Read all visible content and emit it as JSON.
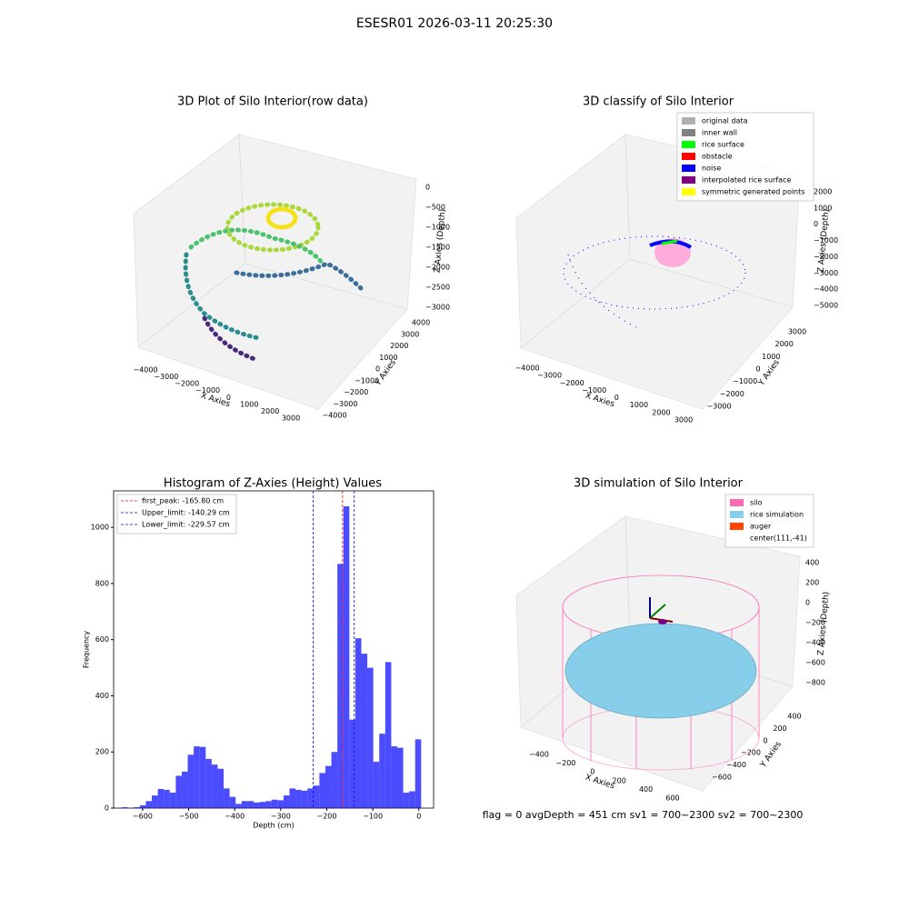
{
  "title": "ESESR01 2026-03-11 20:25:30",
  "footer": "flag = 0     avgDepth = 451 cm  sv1 = 700~2300  sv2 = 700~2300",
  "chart_data": [
    {
      "type": "scatter3d",
      "title": "3D Plot of Silo Interior(row data)",
      "xlabel": "X Axies",
      "ylabel": "Y Axies",
      "zlabel": "Z Axies (Depth)",
      "xticks": [
        {
          "value": -4000,
          "label": "−4000"
        },
        {
          "value": -3000,
          "label": "−3000"
        },
        {
          "value": -2000,
          "label": "−2000"
        },
        {
          "value": -1000,
          "label": "−1000"
        },
        0,
        1000,
        2000,
        3000
      ],
      "yticks": [
        {
          "value": -4000,
          "label": "−4000"
        },
        {
          "value": -3000,
          "label": "−3000"
        },
        {
          "value": -2000,
          "label": "−2000"
        },
        {
          "value": -1000,
          "label": "−1000"
        },
        0,
        1000,
        2000,
        3000,
        4000
      ],
      "zticks": [
        0,
        {
          "value": -500,
          "label": "−500"
        },
        {
          "value": -1000,
          "label": "−1000"
        },
        {
          "value": -1500,
          "label": "−1500"
        },
        {
          "value": -2000,
          "label": "−2000"
        },
        {
          "value": -2500,
          "label": "−2500"
        },
        {
          "value": -3000,
          "label": "−3000"
        }
      ]
    },
    {
      "type": "scatter3d",
      "title": "3D classify of Silo Interior",
      "xlabel": "X Axies",
      "ylabel": "Y Axies",
      "zlabel": "Z Axies (Depth)",
      "xticks": [
        {
          "value": -4000,
          "label": "−4000"
        },
        {
          "value": -3000,
          "label": "−3000"
        },
        {
          "value": -2000,
          "label": "−2000"
        },
        {
          "value": -1000,
          "label": "−1000"
        },
        0,
        1000,
        2000,
        3000
      ],
      "yticks": [
        {
          "value": -3000,
          "label": "−3000"
        },
        {
          "value": -2000,
          "label": "−2000"
        },
        {
          "value": -1000,
          "label": "−1000"
        },
        0,
        1000,
        2000,
        3000
      ],
      "zticks": [
        2000,
        1000,
        0,
        {
          "value": -1000,
          "label": "−1000"
        },
        {
          "value": -2000,
          "label": "−2000"
        },
        {
          "value": -3000,
          "label": "−3000"
        },
        {
          "value": -4000,
          "label": "−4000"
        },
        {
          "value": -5000,
          "label": "−5000"
        }
      ],
      "legend": [
        {
          "name": "original data",
          "color": "#b0b0b0"
        },
        {
          "name": "inner wall",
          "color": "#808080"
        },
        {
          "name": "rice surface",
          "color": "#00ff00"
        },
        {
          "name": "obstacle",
          "color": "#ff0000"
        },
        {
          "name": "noise",
          "color": "#0000ff"
        },
        {
          "name": "interpolated rice surface",
          "color": "#800080"
        },
        {
          "name": "symmetric generated points",
          "color": "#ffff00"
        }
      ]
    },
    {
      "type": "histogram",
      "title": "Histogram of Z-Axies (Height) Values",
      "xlabel": "Depth (cm)",
      "ylabel": "Frequency",
      "color": "#0000ff",
      "bins": [
        -645,
        -632,
        -619,
        -606,
        -593,
        -580,
        -567,
        -554,
        -541,
        -528,
        -515,
        -502,
        -489,
        -476,
        -463,
        -450,
        -437,
        -424,
        -411,
        -398,
        -385,
        -372,
        -359,
        -346,
        -333,
        -320,
        -307,
        -294,
        -281,
        -268,
        -255,
        -242,
        -229,
        -216,
        -203,
        -190,
        -177,
        -164,
        -151,
        -138,
        -125,
        -112,
        -99,
        -86,
        -73,
        -60,
        -47,
        -34,
        -21,
        -8,
        5
      ],
      "values": [
        3,
        0,
        3,
        10,
        25,
        45,
        68,
        65,
        55,
        115,
        130,
        190,
        220,
        218,
        175,
        155,
        140,
        70,
        40,
        15,
        25,
        25,
        20,
        22,
        25,
        30,
        28,
        45,
        70,
        65,
        62,
        70,
        80,
        125,
        150,
        200,
        870,
        1075,
        315,
        605,
        550,
        500,
        165,
        265,
        520,
        220,
        215,
        55,
        60,
        245
      ],
      "xlim": [
        -663,
        32
      ],
      "ylim": [
        0,
        1130
      ],
      "xticks": [
        {
          "value": -600,
          "label": "−600"
        },
        {
          "value": -500,
          "label": "−500"
        },
        {
          "value": -400,
          "label": "−400"
        },
        {
          "value": -300,
          "label": "−300"
        },
        {
          "value": -200,
          "label": "−200"
        },
        {
          "value": -100,
          "label": "−100"
        },
        0
      ],
      "yticks": [
        0,
        200,
        400,
        600,
        800,
        1000
      ],
      "lines": [
        {
          "name": "first_peak: -165.80 cm",
          "value": -165.8,
          "color": "#ff0000"
        },
        {
          "name": "Upper_limit: -140.29 cm",
          "value": -140.29,
          "color": "#0000ff"
        },
        {
          "name": "Lower_limit: -229.57 cm",
          "value": -229.57,
          "color": "#0000ff"
        }
      ]
    },
    {
      "type": "surface3d",
      "title": "3D simulation of Silo Interior",
      "xlabel": "X Axies",
      "ylabel": "Y Axies",
      "zlabel": "Z Axies (Depth)",
      "xticks": [
        {
          "value": -400,
          "label": "−400"
        },
        {
          "value": -200,
          "label": "−200"
        },
        0,
        200,
        400,
        600
      ],
      "yticks": [
        {
          "value": -600,
          "label": "−600"
        },
        {
          "value": -400,
          "label": "−400"
        },
        {
          "value": -200,
          "label": "−200"
        },
        0,
        200,
        400
      ],
      "zticks": [
        400,
        200,
        0,
        {
          "value": -200,
          "label": "−200"
        },
        {
          "value": -400,
          "label": "−400"
        },
        {
          "value": -600,
          "label": "−600"
        },
        {
          "value": -800,
          "label": "−800"
        }
      ],
      "legend": [
        {
          "name": "silo",
          "color": "#ff69b4"
        },
        {
          "name": "rice simulation",
          "color": "#87ceeb"
        },
        {
          "name": "auger",
          "color": "#ff4500"
        },
        {
          "name": "center(111,-41)"
        }
      ]
    }
  ]
}
